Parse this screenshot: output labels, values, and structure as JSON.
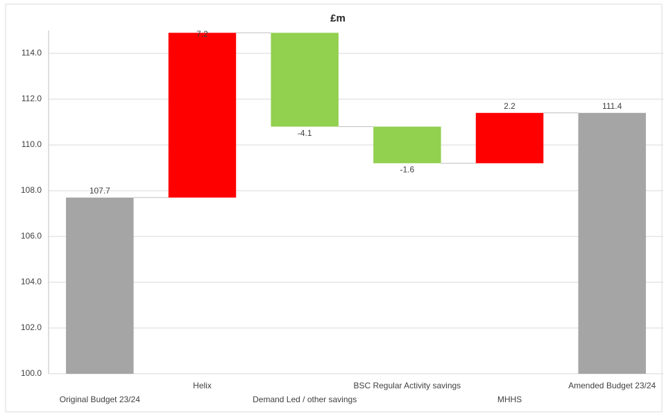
{
  "chart_data": {
    "type": "waterfall",
    "title": "£m",
    "categories": [
      "Original Budget 23/24",
      "Helix",
      "Demand Led / other savings",
      "BSC Regular Activity savings",
      "MHHS",
      "Amended Budget 23/24"
    ],
    "values": [
      107.7,
      7.2,
      -4.1,
      -1.6,
      2.2,
      111.4
    ],
    "is_total": [
      true,
      false,
      false,
      false,
      false,
      true
    ],
    "total_color": "#a5a5a5",
    "increase_color": "#ff0000",
    "decrease_color": "#92d050",
    "ylim": [
      100,
      115
    ],
    "yticks": [
      {
        "value": 100,
        "label": "100.0"
      },
      {
        "value": 102,
        "label": "102.0"
      },
      {
        "value": 104,
        "label": "104.0"
      },
      {
        "value": 106,
        "label": "106.0"
      },
      {
        "value": 108,
        "label": "108.0"
      },
      {
        "value": 110,
        "label": "110.0"
      },
      {
        "value": 112,
        "label": "112.0"
      },
      {
        "value": 114,
        "label": "114.0"
      }
    ],
    "grid": true
  }
}
